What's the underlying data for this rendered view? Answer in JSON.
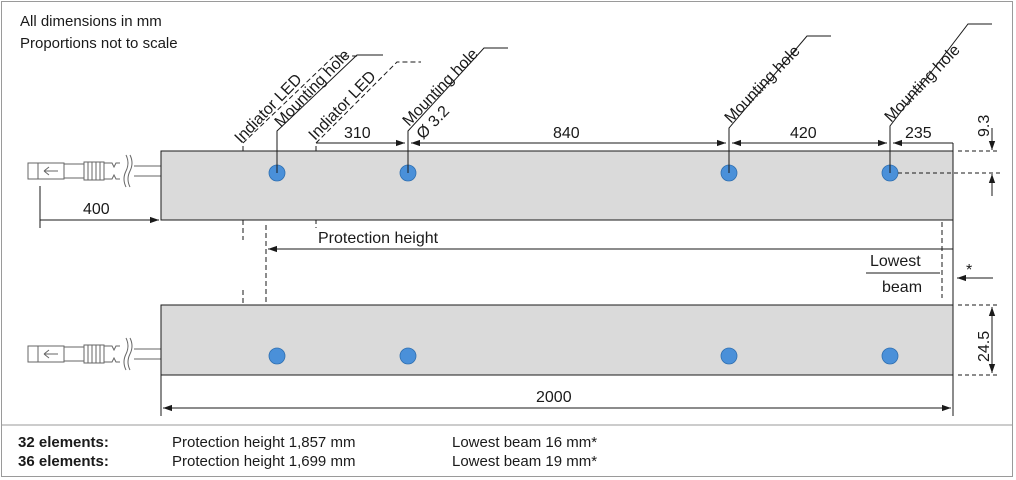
{
  "notes": {
    "units": "All dimensions in mm",
    "scale": "Proportions not to scale"
  },
  "labels": {
    "led_left": "Indiator LED",
    "mount_1": "Mounting hole",
    "led_right": "Indiator LED",
    "mount_2": "Mounting hole",
    "mount_2_dia": "Ø 3.2",
    "mount_3": "Mounting hole",
    "mount_4": "Mounting hole",
    "protection_height": "Protection height",
    "lowest": "Lowest",
    "beam": "beam",
    "asterisk": "*"
  },
  "dimensions": {
    "d310": "310",
    "d840": "840",
    "d420": "420",
    "d235": "235",
    "d9_3": "9.3",
    "d400": "400",
    "d24_5": "24.5",
    "d2000": "2000"
  },
  "footer": {
    "rows": [
      {
        "elements": "32 elements:",
        "protection": "Protection height 1,857 mm",
        "beam": "Lowest beam 16 mm*"
      },
      {
        "elements": "36 elements:",
        "protection": "Protection height 1,699 mm",
        "beam": "Lowest beam 19 mm*"
      }
    ]
  },
  "colors": {
    "bar_fill": "#dadada",
    "hole_fill": "#4a90d9",
    "line": "#1a1a1a"
  }
}
